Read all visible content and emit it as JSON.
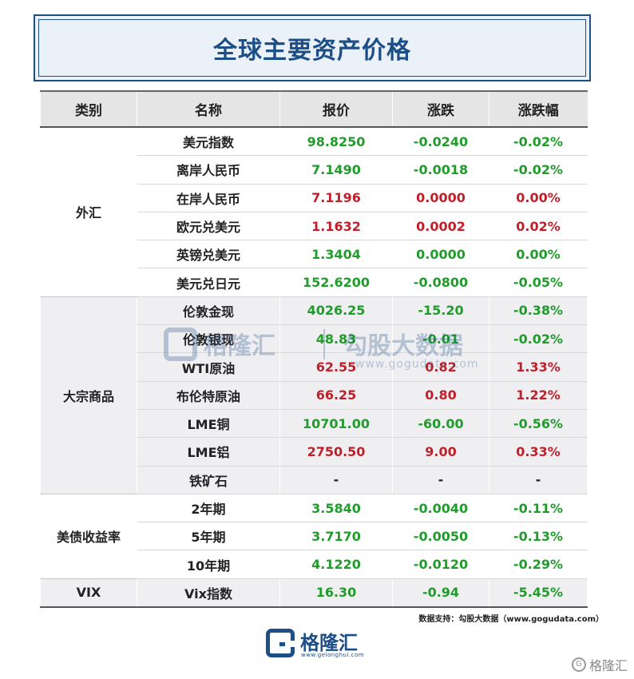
{
  "title": "全球主要资产价格",
  "headers": [
    "类别",
    "名称",
    "报价",
    "涨跌",
    "涨跌幅"
  ],
  "groups": [
    {
      "category": "外汇",
      "rows": [
        {
          "name": "美元指数",
          "price": "98.8250",
          "change": "-0.0240",
          "pct": "-0.02%",
          "price_color": "green",
          "change_color": "green",
          "pct_color": "green"
        },
        {
          "name": "离岸人民币",
          "price": "7.1490",
          "change": "-0.0018",
          "pct": "-0.02%",
          "price_color": "green",
          "change_color": "green",
          "pct_color": "green"
        },
        {
          "name": "在岸人民币",
          "price": "7.1196",
          "change": "0.0000",
          "pct": "0.00%",
          "price_color": "red",
          "change_color": "red",
          "pct_color": "red"
        },
        {
          "name": "欧元兑美元",
          "price": "1.1632",
          "change": "0.0002",
          "pct": "0.02%",
          "price_color": "red",
          "change_color": "red",
          "pct_color": "red"
        },
        {
          "name": "英镑兑美元",
          "price": "1.3404",
          "change": "0.0000",
          "pct": "0.00%",
          "price_color": "green",
          "change_color": "green",
          "pct_color": "green"
        },
        {
          "name": "美元兑日元",
          "price": "152.6200",
          "change": "-0.0800",
          "pct": "-0.05%",
          "price_color": "green",
          "change_color": "green",
          "pct_color": "green"
        }
      ]
    },
    {
      "category": "大宗商品",
      "rows": [
        {
          "name": "伦敦金现",
          "price": "4026.25",
          "change": "-15.20",
          "pct": "-0.38%",
          "price_color": "green",
          "change_color": "green",
          "pct_color": "green"
        },
        {
          "name": "伦敦银现",
          "price": "48.83",
          "change": "-0.01",
          "pct": "-0.02%",
          "price_color": "green",
          "change_color": "green",
          "pct_color": "green"
        },
        {
          "name": "WTI原油",
          "price": "62.55",
          "change": "0.82",
          "pct": "1.33%",
          "price_color": "red",
          "change_color": "red",
          "pct_color": "red"
        },
        {
          "name": "布伦特原油",
          "price": "66.25",
          "change": "0.80",
          "pct": "1.22%",
          "price_color": "red",
          "change_color": "red",
          "pct_color": "red"
        },
        {
          "name": "LME铜",
          "price": "10701.00",
          "change": "-60.00",
          "pct": "-0.56%",
          "price_color": "green",
          "change_color": "green",
          "pct_color": "green"
        },
        {
          "name": "LME铝",
          "price": "2750.50",
          "change": "9.00",
          "pct": "0.33%",
          "price_color": "red",
          "change_color": "red",
          "pct_color": "red"
        },
        {
          "name": "铁矿石",
          "price": "-",
          "change": "-",
          "pct": "-",
          "price_color": "black",
          "change_color": "black",
          "pct_color": "black"
        }
      ]
    },
    {
      "category": "美债收益率",
      "rows": [
        {
          "name": "2年期",
          "price": "3.5840",
          "change": "-0.0040",
          "pct": "-0.11%",
          "price_color": "green",
          "change_color": "green",
          "pct_color": "green"
        },
        {
          "name": "5年期",
          "price": "3.7170",
          "change": "-0.0050",
          "pct": "-0.13%",
          "price_color": "green",
          "change_color": "green",
          "pct_color": "green"
        },
        {
          "name": "10年期",
          "price": "4.1220",
          "change": "-0.0120",
          "pct": "-0.29%",
          "price_color": "green",
          "change_color": "green",
          "pct_color": "green"
        }
      ]
    },
    {
      "category": "VIX",
      "rows": [
        {
          "name": "Vix指数",
          "price": "16.30",
          "change": "-0.94",
          "pct": "-5.45%",
          "price_color": "green",
          "change_color": "green",
          "pct_color": "green"
        }
      ]
    }
  ],
  "watermark": {
    "brand": "格隆汇",
    "partner": "勾股大数据",
    "url": "www.gogudata.com"
  },
  "source_note": "数据支持：勾股大数据（www.gogudata.com）",
  "footer_brand": {
    "name": "格隆汇",
    "url": "www.gelonghui.com"
  },
  "corner_mark": "格隆汇",
  "colors": {
    "accent": "#1d4e86",
    "up": "#c0202a",
    "down": "#1f9c2a"
  }
}
